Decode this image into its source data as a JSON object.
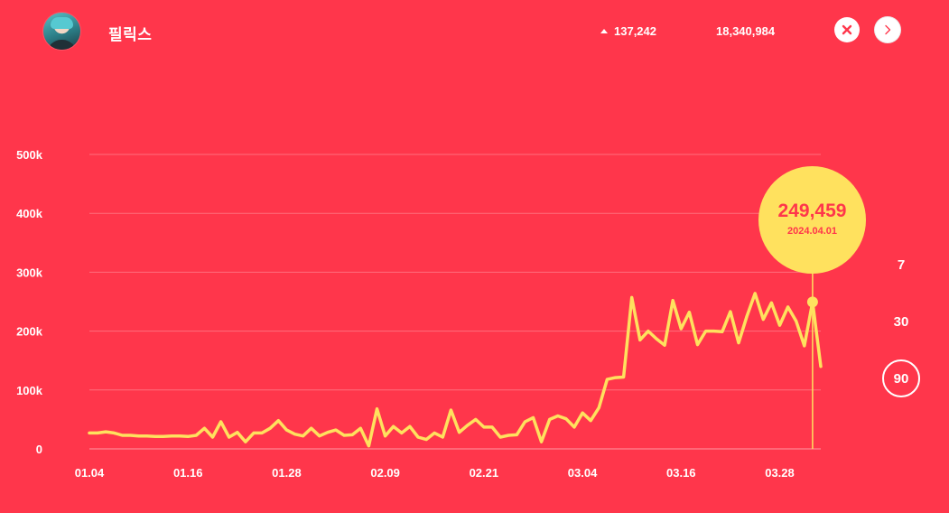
{
  "header": {
    "artist_name": "필릭스",
    "daily_change": "137,242",
    "total": "18,340,984"
  },
  "icons": {
    "avatar": "profile-photo",
    "change_indicator": "triangle-up-icon",
    "close": "close-icon",
    "next": "chevron-right-icon"
  },
  "colors": {
    "background": "#ff364b",
    "line": "#ffe15e",
    "bubble": "#ffe15e",
    "text": "#ffffff",
    "close_icon": "#ff364b",
    "next_icon": "#ff364b"
  },
  "range_options": [
    {
      "label": "7",
      "active": false
    },
    {
      "label": "30",
      "active": false
    },
    {
      "label": "90",
      "active": true
    }
  ],
  "highlight": {
    "value": "249,459",
    "date": "2024.04.01"
  },
  "chart_data": {
    "type": "line",
    "title": "",
    "xlabel": "",
    "ylabel": "",
    "ylim": [
      0,
      500000
    ],
    "yticks": [
      0,
      100000,
      200000,
      300000,
      400000,
      500000
    ],
    "ytick_labels": [
      "0",
      "100k",
      "200k",
      "300k",
      "400k",
      "500k"
    ],
    "xticks": [
      0,
      12,
      24,
      36,
      48,
      60,
      72,
      84
    ],
    "xtick_labels": [
      "01.04",
      "01.16",
      "01.28",
      "02.09",
      "02.21",
      "03.04",
      "03.16",
      "03.28"
    ],
    "grid": true,
    "x_start_label": "01.04",
    "values": [
      27000,
      27000,
      29000,
      27000,
      23000,
      23000,
      22000,
      22000,
      21000,
      21000,
      22000,
      22000,
      21000,
      23000,
      35000,
      20000,
      46000,
      20000,
      28000,
      12000,
      27000,
      27000,
      35000,
      48000,
      32000,
      25000,
      22000,
      35000,
      22000,
      28000,
      32000,
      23000,
      24000,
      35000,
      5000,
      68000,
      22000,
      38000,
      27000,
      38000,
      20000,
      16000,
      27000,
      20000,
      66000,
      28000,
      40000,
      50000,
      37000,
      37000,
      20000,
      23000,
      24000,
      46000,
      53000,
      12000,
      50000,
      56000,
      51000,
      37000,
      61000,
      48000,
      70000,
      118000,
      121000,
      122000,
      257000,
      185000,
      200000,
      187000,
      176000,
      252000,
      204000,
      232000,
      177000,
      200000,
      200000,
      199000,
      233000,
      180000,
      225000,
      264000,
      220000,
      248000,
      210000,
      241000,
      217000,
      175000,
      249459,
      140000
    ],
    "highlight_index": 88,
    "highlight_label": "2024.04.01"
  }
}
